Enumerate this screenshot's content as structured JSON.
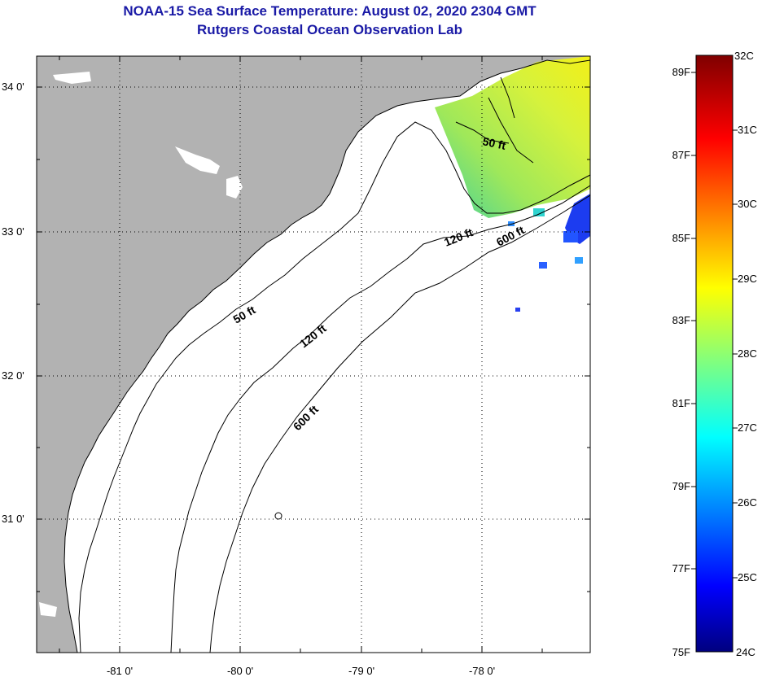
{
  "header": {
    "title": "NOAA-15 Sea Surface Temperature:  August 02, 2020 2304 GMT",
    "subtitle": "Rutgers Coastal Ocean Observation Lab"
  },
  "map": {
    "lat_labels": [
      "34 0'",
      "33 0'",
      "32 0'",
      "31 0'"
    ],
    "lon_labels": [
      "-81 0'",
      "-80 0'",
      "-79 0'",
      "-78 0'"
    ],
    "contours": {
      "c50_upper": "50 ft",
      "c50_lower": "50 ft",
      "c120_upper": "120 ft",
      "c120_lower": "120 ft",
      "c600_upper": "600 ft",
      "c600_lower": "600 ft"
    },
    "colors": {
      "land": "#b2b2b2",
      "ocean": "#ffffff",
      "title": "#1a1aa6"
    }
  },
  "colorbar": {
    "fahrenheit": [
      "89F",
      "87F",
      "85F",
      "83F",
      "81F",
      "79F",
      "77F",
      "75F"
    ],
    "celsius": [
      "32C",
      "31C",
      "30C",
      "29C",
      "28C",
      "27C",
      "26C",
      "25C",
      "24C"
    ]
  }
}
